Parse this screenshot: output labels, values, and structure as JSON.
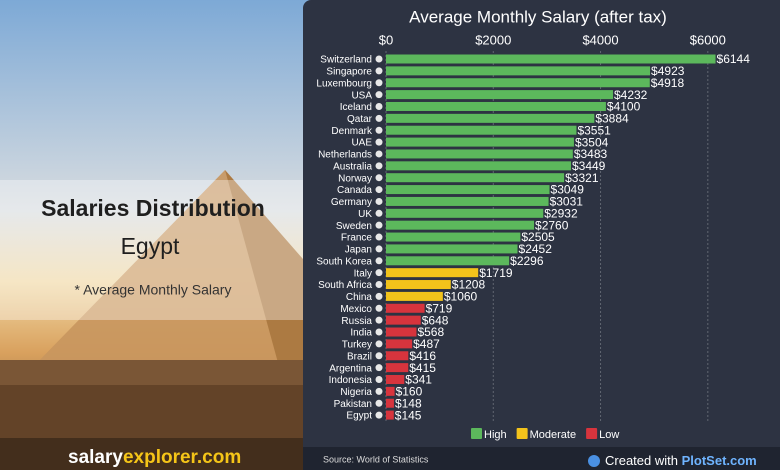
{
  "page": {
    "heading": "Salaries Distribution",
    "country": "Egypt",
    "note": "* Average Monthly Salary",
    "brand": {
      "part1": "salary",
      "part2": "explorer.com"
    }
  },
  "chart_data": {
    "type": "bar",
    "orientation": "horizontal",
    "title": "Average Monthly Salary (after tax)",
    "categories": [
      "Switzerland",
      "Singapore",
      "Luxembourg",
      "USA",
      "Iceland",
      "Qatar",
      "Denmark",
      "UAE",
      "Netherlands",
      "Australia",
      "Norway",
      "Canada",
      "Germany",
      "UK",
      "Sweden",
      "France",
      "Japan",
      "South Korea",
      "Italy",
      "South Africa",
      "China",
      "Mexico",
      "Russia",
      "India",
      "Turkey",
      "Brazil",
      "Argentina",
      "Indonesia",
      "Nigeria",
      "Pakistan",
      "Egypt"
    ],
    "series": [
      {
        "name": "High",
        "color": "#5cb85c",
        "values": [
          6144,
          4923,
          4918,
          4232,
          4100,
          3884,
          3551,
          3504,
          3483,
          3449,
          3321,
          3049,
          3031,
          2932,
          2760,
          2505,
          2452,
          2296,
          null,
          null,
          null,
          null,
          null,
          null,
          null,
          null,
          null,
          null,
          null,
          null,
          null
        ],
        "value_labels": [
          "$6144",
          "$4923",
          "$4918",
          "$4232",
          "$4100",
          "$3884",
          "$3551",
          "$3504",
          "$3483",
          "$3449",
          "$3321",
          "$3049",
          "$3031",
          "$2932",
          "$2760",
          "$2505",
          "$2452",
          "$2296",
          null,
          null,
          null,
          null,
          null,
          null,
          null,
          null,
          null,
          null,
          null,
          null,
          null
        ]
      },
      {
        "name": "Moderate",
        "color": "#f2c31b",
        "values": [
          null,
          null,
          null,
          null,
          null,
          null,
          null,
          null,
          null,
          null,
          null,
          null,
          null,
          null,
          null,
          null,
          null,
          null,
          1719,
          1208,
          1060,
          null,
          null,
          null,
          null,
          null,
          null,
          null,
          null,
          null,
          null
        ],
        "value_labels": [
          null,
          null,
          null,
          null,
          null,
          null,
          null,
          null,
          null,
          null,
          null,
          null,
          null,
          null,
          null,
          null,
          null,
          null,
          "$1719",
          "$1208",
          "$1060",
          null,
          null,
          null,
          null,
          null,
          null,
          null,
          null,
          null,
          null
        ]
      },
      {
        "name": "Low",
        "color": "#d7343d",
        "values": [
          null,
          null,
          null,
          null,
          null,
          null,
          null,
          null,
          null,
          null,
          null,
          null,
          null,
          null,
          null,
          null,
          null,
          null,
          null,
          null,
          null,
          719,
          648,
          568,
          487,
          416,
          415,
          341,
          160,
          148,
          145
        ],
        "value_labels": [
          null,
          null,
          null,
          null,
          null,
          null,
          null,
          null,
          null,
          null,
          null,
          null,
          null,
          null,
          null,
          null,
          null,
          null,
          null,
          null,
          null,
          "$719",
          "$648",
          "$568",
          "$487",
          "$416",
          "$415",
          "$341",
          "$160",
          "$148",
          "$145"
        ]
      }
    ],
    "xlim": [
      0,
      6600
    ],
    "xticks": [
      {
        "value": 0,
        "label": "$0"
      },
      {
        "value": 2000,
        "label": "$2000"
      },
      {
        "value": 4000,
        "label": "$4000"
      },
      {
        "value": 6000,
        "label": "$6000"
      }
    ],
    "grid": true,
    "source": "Source: World of Statistics",
    "credit": {
      "prefix": "Created with",
      "brand": "PlotSet.com"
    }
  }
}
